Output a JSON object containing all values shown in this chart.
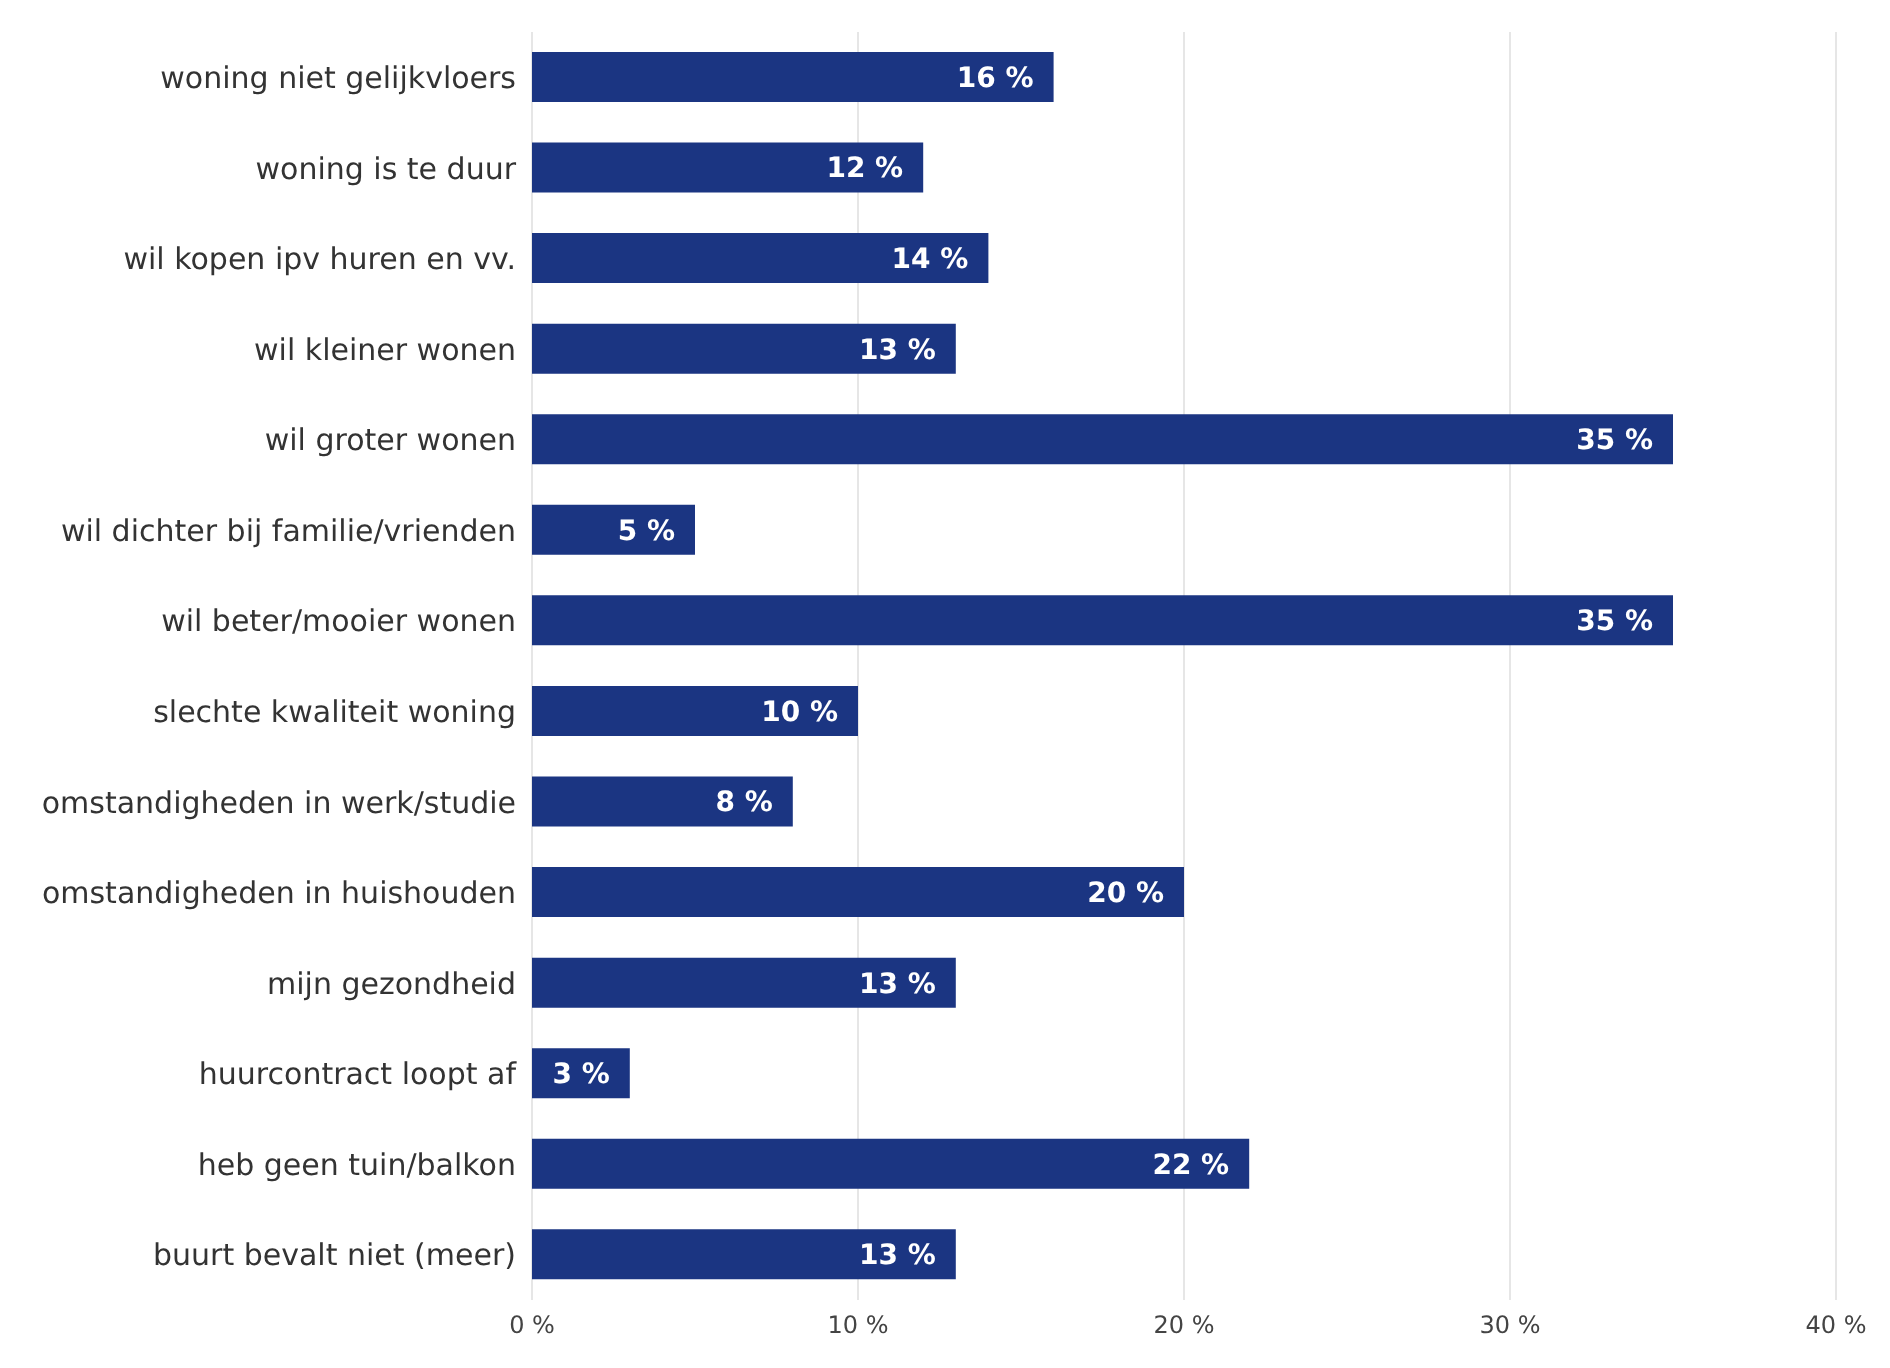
{
  "chart_data": {
    "type": "bar",
    "orientation": "horizontal",
    "categories": [
      "woning niet gelijkvloers",
      "woning is te duur",
      "wil kopen ipv huren en vv.",
      "wil kleiner wonen",
      "wil groter wonen",
      "wil dichter bij familie/vrienden",
      "wil beter/mooier wonen",
      "slechte kwaliteit woning",
      "omstandigheden in werk/studie",
      "omstandigheden in huishouden",
      "mijn gezondheid",
      "huurcontract loopt af",
      "heb geen tuin/balkon",
      "buurt bevalt niet (meer)"
    ],
    "values": [
      16,
      12,
      14,
      13,
      35,
      5,
      35,
      10,
      8,
      20,
      13,
      3,
      22,
      13
    ],
    "value_labels": [
      "16 %",
      "12 %",
      "14 %",
      "13 %",
      "35 %",
      "5 %",
      "35 %",
      "10 %",
      "8 %",
      "20 %",
      "13 %",
      "3 %",
      "22 %",
      "13 %"
    ],
    "color": "#1b3582",
    "xlim": [
      0,
      40
    ],
    "xticks": [
      {
        "value": 0,
        "label": "0 %"
      },
      {
        "value": 10,
        "label": "10 %"
      },
      {
        "value": 20,
        "label": "20 %"
      },
      {
        "value": 30,
        "label": "30 %"
      },
      {
        "value": 40,
        "label": "40 %"
      }
    ],
    "grid": "x"
  }
}
